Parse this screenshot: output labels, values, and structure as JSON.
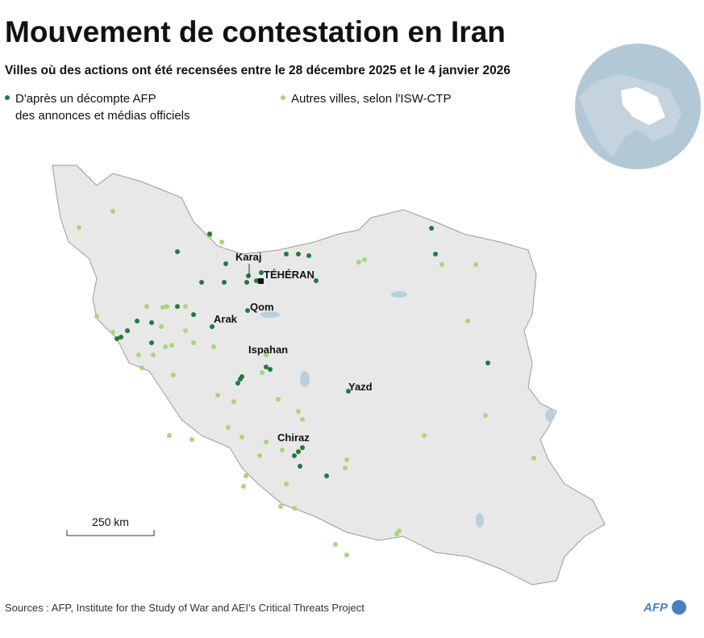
{
  "header": {
    "title": "Mouvement de contestation en Iran",
    "subtitle": "Villes où des actions ont été recensées entre le 28 décembre 2025 et le 4 janvier 2026"
  },
  "legend": [
    {
      "lines": [
        "D'après un décompte AFP",
        "des annonces et médias officiels"
      ],
      "color": "#237a3b"
    },
    {
      "lines": [
        "Autres villes, selon l'ISW-CTP"
      ],
      "color": "#a6d77a"
    }
  ],
  "map": {
    "cities": [
      {
        "label": "Karaj"
      },
      {
        "label": "TÉHÉRAN"
      },
      {
        "label": "Qom"
      },
      {
        "label": "Arak"
      },
      {
        "label": "Ispahan"
      },
      {
        "label": "Yazd"
      },
      {
        "label": "Chiraz"
      }
    ],
    "scale_label": "250 km"
  },
  "footer": {
    "sources": "Sources : AFP, Institute for the Study of War and AEI's Critical Threats Project",
    "logo": "AFP"
  }
}
